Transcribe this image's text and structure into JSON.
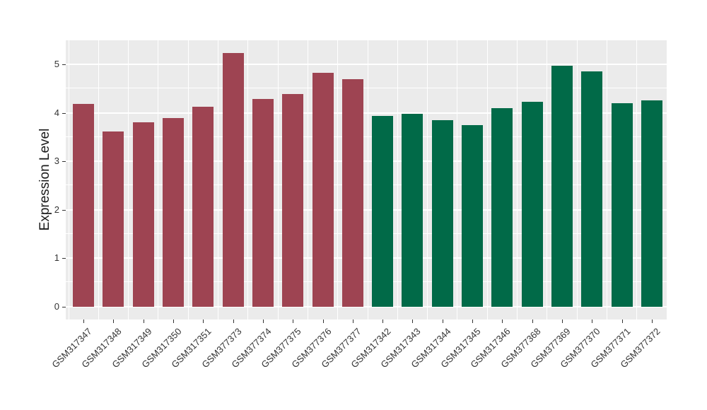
{
  "chart_data": {
    "type": "bar",
    "title": "",
    "xlabel": "",
    "ylabel": "Expression Level",
    "ylim": [
      0,
      5.5
    ],
    "yticks": [
      0,
      1,
      2,
      3,
      4,
      5
    ],
    "ytick_labels": [
      "0",
      "1",
      "2",
      "3",
      "4",
      "5"
    ],
    "grid": "on",
    "legend": "none",
    "panel_bg": "#ebebeb",
    "grid_color": "#ffffff",
    "tick_color": "#333333",
    "group_colors": {
      "group1": "#9e4452",
      "group2": "#016a48"
    },
    "bars": [
      {
        "label": "GSM317347",
        "value": 4.19,
        "group": "group1"
      },
      {
        "label": "GSM317348",
        "value": 3.62,
        "group": "group1"
      },
      {
        "label": "GSM317349",
        "value": 3.8,
        "group": "group1"
      },
      {
        "label": "GSM317350",
        "value": 3.89,
        "group": "group1"
      },
      {
        "label": "GSM317351",
        "value": 4.13,
        "group": "group1"
      },
      {
        "label": "GSM377373",
        "value": 5.24,
        "group": "group1"
      },
      {
        "label": "GSM377374",
        "value": 4.29,
        "group": "group1"
      },
      {
        "label": "GSM377375",
        "value": 4.38,
        "group": "group1"
      },
      {
        "label": "GSM377376",
        "value": 4.82,
        "group": "group1"
      },
      {
        "label": "GSM377377",
        "value": 4.7,
        "group": "group1"
      },
      {
        "label": "GSM317342",
        "value": 3.93,
        "group": "group2"
      },
      {
        "label": "GSM317343",
        "value": 3.98,
        "group": "group2"
      },
      {
        "label": "GSM317344",
        "value": 3.84,
        "group": "group2"
      },
      {
        "label": "GSM317345",
        "value": 3.75,
        "group": "group2"
      },
      {
        "label": "GSM317346",
        "value": 4.1,
        "group": "group2"
      },
      {
        "label": "GSM377368",
        "value": 4.22,
        "group": "group2"
      },
      {
        "label": "GSM377369",
        "value": 4.97,
        "group": "group2"
      },
      {
        "label": "GSM377370",
        "value": 4.85,
        "group": "group2"
      },
      {
        "label": "GSM377371",
        "value": 4.2,
        "group": "group2"
      },
      {
        "label": "GSM377372",
        "value": 4.25,
        "group": "group2"
      }
    ]
  }
}
